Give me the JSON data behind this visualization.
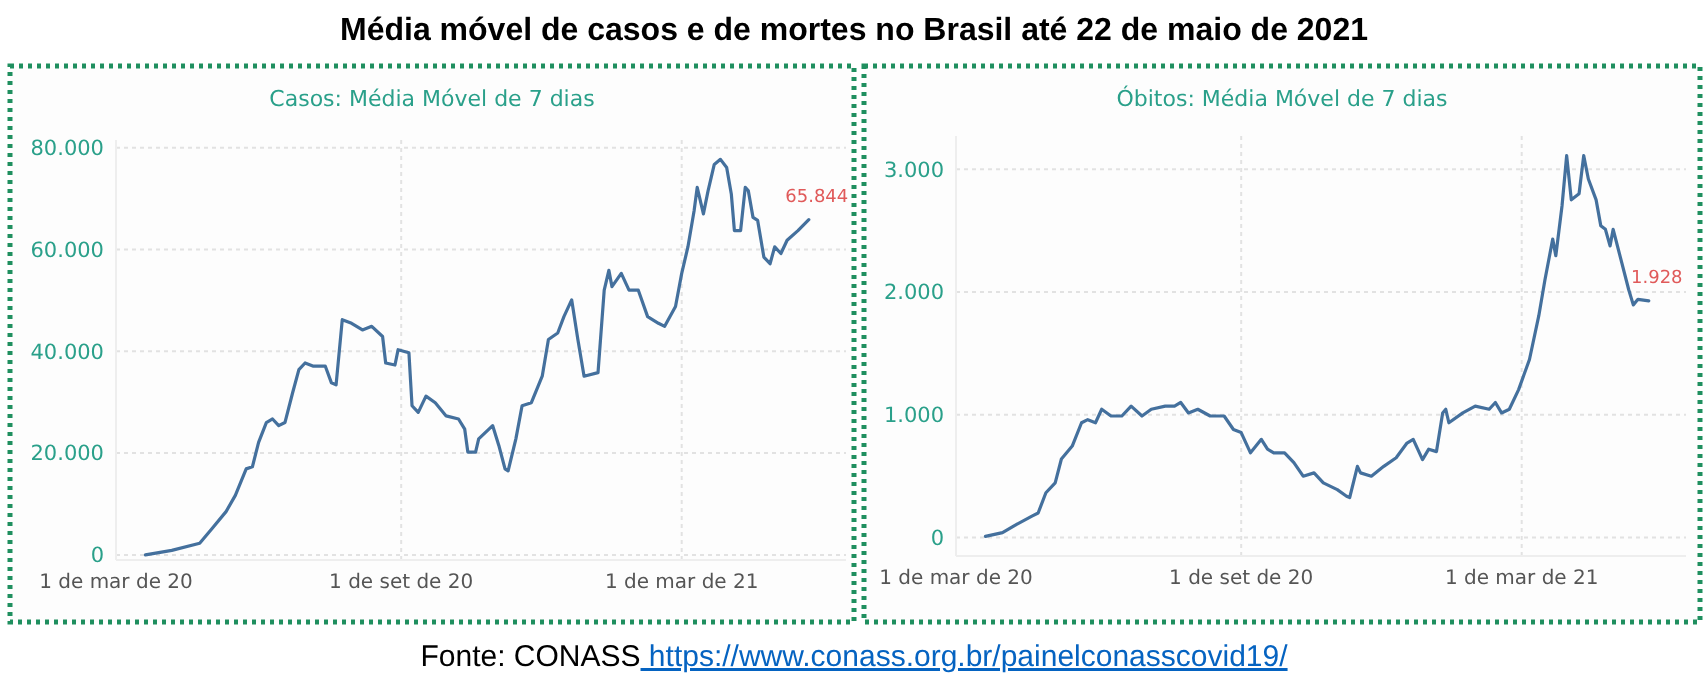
{
  "chart_data": [
    {
      "type": "line",
      "title": "Média móvel de casos e de mortes no Brasil até 22 de maio de 2021",
      "subtitle": "Casos: Média Móvel de 7 dias",
      "x": [
        "2020-03-20",
        "2020-04-06",
        "2020-04-24",
        "2020-05-02",
        "2020-05-11",
        "2020-05-17",
        "2020-05-24",
        "2020-05-28",
        "2020-06-01",
        "2020-06-06",
        "2020-06-10",
        "2020-06-14",
        "2020-06-18",
        "2020-06-23",
        "2020-06-27",
        "2020-07-01",
        "2020-07-06",
        "2020-07-14",
        "2020-07-18",
        "2020-07-21",
        "2020-07-25",
        "2020-07-31",
        "2020-08-07",
        "2020-08-13",
        "2020-08-20",
        "2020-08-22",
        "2020-08-28",
        "2020-08-30",
        "2020-09-06",
        "2020-09-08",
        "2020-09-12",
        "2020-09-17",
        "2020-09-23",
        "2020-09-30",
        "2020-10-08",
        "2020-10-12",
        "2020-10-14",
        "2020-10-19",
        "2020-10-21",
        "2020-10-30",
        "2020-11-03",
        "2020-11-07",
        "2020-11-09",
        "2020-11-14",
        "2020-11-18",
        "2020-11-24",
        "2020-12-01",
        "2020-12-05",
        "2020-12-11",
        "2020-12-15",
        "2020-12-20",
        "2020-12-24",
        "2020-12-28",
        "2021-01-06",
        "2021-01-10",
        "2021-01-13",
        "2021-01-15",
        "2021-01-21",
        "2021-01-26",
        "2021-02-01",
        "2021-02-07",
        "2021-02-14",
        "2021-02-18",
        "2021-02-25",
        "2021-03-01",
        "2021-03-05",
        "2021-03-09",
        "2021-03-11",
        "2021-03-15",
        "2021-03-18",
        "2021-03-22",
        "2021-03-26",
        "2021-03-30",
        "2021-04-02",
        "2021-04-04",
        "2021-04-08",
        "2021-04-11",
        "2021-04-13",
        "2021-04-16",
        "2021-04-19",
        "2021-04-23",
        "2021-04-27",
        "2021-04-30",
        "2021-05-04",
        "2021-05-08",
        "2021-05-15",
        "2021-05-22"
      ],
      "series": [
        {
          "color": "#44709d",
          "values": [
            0,
            900,
            2300,
            5200,
            8500,
            11700,
            16900,
            17300,
            22100,
            26000,
            26700,
            25400,
            26000,
            31900,
            36400,
            37700,
            37100,
            37100,
            33800,
            33400,
            46200,
            45500,
            44200,
            44900,
            42900,
            37700,
            37300,
            40300,
            39700,
            29300,
            28000,
            31200,
            29900,
            27300,
            26700,
            24700,
            20200,
            20200,
            22800,
            25400,
            21500,
            16900,
            16500,
            22800,
            29300,
            29900,
            35100,
            42300,
            43600,
            46800,
            50100,
            42300,
            35100,
            35800,
            52000,
            55900,
            52700,
            55300,
            52000,
            52000,
            46800,
            45500,
            44900,
            48800,
            55300,
            60500,
            67600,
            72200,
            67000,
            71500,
            76700,
            77700,
            76100,
            70900,
            63700,
            63700,
            72200,
            71500,
            66300,
            65700,
            58500,
            57200,
            60500,
            59200,
            61800,
            63700,
            65844
          ]
        }
      ],
      "xlim": [
        "2020-03-01",
        "2021-06-15"
      ],
      "ylim": [
        -1000,
        81500
      ],
      "xticks": [
        {
          "value": "2020-03-01",
          "label": "1 de mar de 20"
        },
        {
          "value": "2020-09-01",
          "label": "1 de set de 20"
        },
        {
          "value": "2021-03-01",
          "label": "1 de mar de 21"
        }
      ],
      "yticks": [
        0,
        {
          "value": 20000,
          "label": "20.000"
        },
        {
          "value": 40000,
          "label": "40.000"
        },
        {
          "value": 60000,
          "label": "60.000"
        },
        {
          "value": 80000,
          "label": "80.000"
        }
      ],
      "grid": true,
      "annotations": [
        {
          "text": "65.844",
          "x": "2021-05-22",
          "y": 65844
        }
      ]
    },
    {
      "type": "line",
      "subtitle": "Óbitos: Média Móvel de 7 dias",
      "x": [
        "2020-03-20",
        "2020-03-31",
        "2020-04-08",
        "2020-04-19",
        "2020-04-23",
        "2020-04-28",
        "2020-05-04",
        "2020-05-08",
        "2020-05-15",
        "2020-05-21",
        "2020-05-25",
        "2020-05-30",
        "2020-06-03",
        "2020-06-09",
        "2020-06-16",
        "2020-06-22",
        "2020-06-29",
        "2020-07-05",
        "2020-07-14",
        "2020-07-20",
        "2020-07-24",
        "2020-07-29",
        "2020-08-04",
        "2020-08-12",
        "2020-08-21",
        "2020-08-27",
        "2020-09-01",
        "2020-09-05",
        "2020-09-07",
        "2020-09-14",
        "2020-09-18",
        "2020-09-22",
        "2020-09-29",
        "2020-10-05",
        "2020-10-11",
        "2020-10-18",
        "2020-10-24",
        "2020-11-02",
        "2020-11-08",
        "2020-11-10",
        "2020-11-15",
        "2020-11-17",
        "2020-11-24",
        "2020-12-02",
        "2020-12-10",
        "2020-12-17",
        "2020-12-21",
        "2020-12-27",
        "2020-12-31",
        "2021-01-05",
        "2021-01-09",
        "2021-01-11",
        "2021-01-13",
        "2021-01-22",
        "2021-01-30",
        "2021-02-08",
        "2021-02-12",
        "2021-02-16",
        "2021-02-21",
        "2021-02-27",
        "2021-03-06",
        "2021-03-12",
        "2021-03-16",
        "2021-03-21",
        "2021-03-23",
        "2021-03-27",
        "2021-03-30",
        "2021-04-02",
        "2021-04-07",
        "2021-04-10",
        "2021-04-13",
        "2021-04-18",
        "2021-04-21",
        "2021-04-24",
        "2021-04-27",
        "2021-04-29",
        "2021-05-04",
        "2021-05-09",
        "2021-05-12",
        "2021-05-15",
        "2021-05-22"
      ],
      "series": [
        {
          "color": "#44709d",
          "values": [
            10,
            40,
            100,
            175,
            200,
            365,
            445,
            640,
            745,
            935,
            960,
            935,
            1045,
            990,
            990,
            1070,
            990,
            1045,
            1070,
            1070,
            1100,
            1015,
            1045,
            990,
            990,
            880,
            855,
            745,
            690,
            800,
            720,
            690,
            690,
            610,
            500,
            527,
            445,
            390,
            337,
            326,
            580,
            527,
            500,
            580,
            650,
            770,
            800,
            635,
            720,
            700,
            1015,
            1045,
            935,
            1015,
            1070,
            1045,
            1100,
            1015,
            1045,
            1205,
            1450,
            1805,
            2100,
            2430,
            2295,
            2700,
            3110,
            2750,
            2800,
            3110,
            2920,
            2750,
            2540,
            2510,
            2375,
            2510,
            2265,
            2020,
            1895,
            1940,
            1928
          ]
        }
      ],
      "xlim": [
        "2020-03-01",
        "2021-06-15"
      ],
      "ylim": [
        -150,
        3270
      ],
      "xticks": [
        {
          "value": "2020-03-01",
          "label": "1 de mar de 20"
        },
        {
          "value": "2020-09-01",
          "label": "1 de set de 20"
        },
        {
          "value": "2021-03-01",
          "label": "1 de mar de 21"
        }
      ],
      "yticks": [
        0,
        {
          "value": 1000,
          "label": "1.000"
        },
        {
          "value": 2000,
          "label": "2.000"
        },
        {
          "value": 3000,
          "label": "3.000"
        }
      ],
      "grid": true,
      "annotations": [
        {
          "text": "1.928",
          "x": "2021-05-22",
          "y": 1928
        },
        "Fonte: CONASS",
        "https://www.conass.org.br/painelconasscovid19/"
      ]
    }
  ]
}
